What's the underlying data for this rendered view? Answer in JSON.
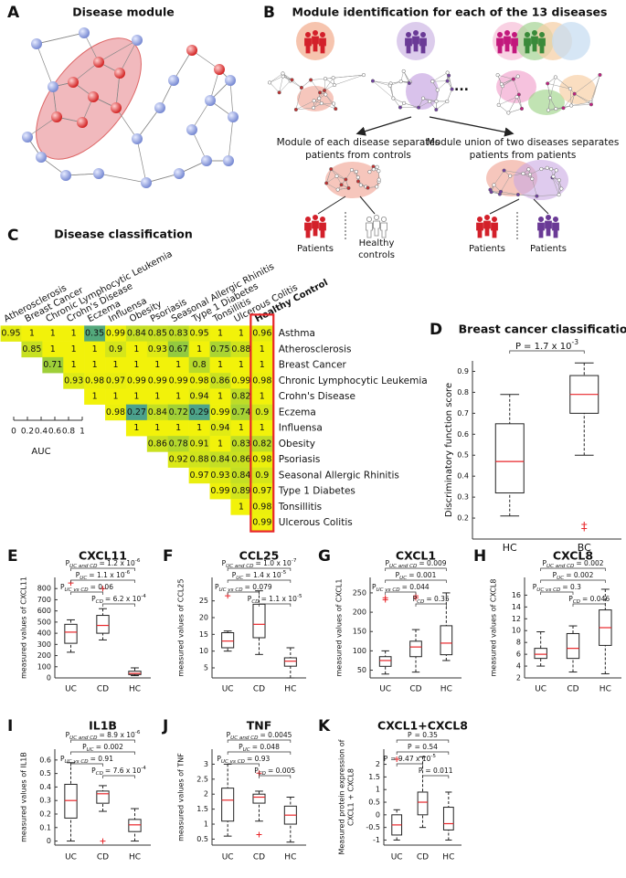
{
  "panels": {
    "A": {
      "letter": "A",
      "title": "Disease module"
    },
    "B": {
      "letter": "B",
      "title": "Module identification for each of the 13 diseases",
      "ellipsis": "...",
      "left_caption": [
        "Module of each disease separates",
        "patients from controls"
      ],
      "right_caption": [
        "Module union of two diseases separates",
        "patients from patients"
      ],
      "left_patients": "Patients",
      "left_controls": [
        "Healthy",
        "controls"
      ],
      "right_groups": [
        "Patients",
        "Patients"
      ]
    }
  },
  "chart_data": [
    {
      "type": "heatmap",
      "panel": "C",
      "title": "Disease classification",
      "columns": [
        "Atherosclerosis",
        "Breast Cancer",
        "Chronic Lymphocytic Leukemia",
        "Crohn's Disease",
        "Eczema",
        "Influensa",
        "Obesity",
        "Psoriasis",
        "Seasonal Allergic Rhinitis",
        "Type 1 Diabetes",
        "Tonsillitis",
        "Ulcerous Colitis",
        "Healthy Control"
      ],
      "rows": [
        "Asthma",
        "Atherosclerosis",
        "Breast Cancer",
        "Chronic Lymphocytic Leukemia",
        "Crohn's Disease",
        "Eczema",
        "Influensa",
        "Obesity",
        "Psoriasis",
        "Seasonal Allergic Rhinitis",
        "Type 1 Diabetes",
        "Tonsillitis",
        "Ulcerous Colitis"
      ],
      "values": [
        [
          0.95,
          1,
          1,
          1,
          0.35,
          0.99,
          0.84,
          0.85,
          0.83,
          0.95,
          1,
          1,
          0.96
        ],
        [
          0.85,
          1,
          1,
          1,
          0.9,
          1,
          0.93,
          0.67,
          1,
          0.75,
          0.88,
          1
        ],
        [
          0.71,
          1,
          1,
          1,
          1,
          1,
          1,
          0.8,
          1,
          1,
          1
        ],
        [
          0.93,
          0.98,
          0.97,
          0.99,
          0.99,
          0.99,
          0.98,
          0.86,
          0.99,
          0.98
        ],
        [
          1,
          1,
          1,
          1,
          1,
          0.94,
          1,
          0.82,
          1
        ],
        [
          0.98,
          0.27,
          0.84,
          0.72,
          0.29,
          0.99,
          0.74,
          0.9
        ],
        [
          1,
          1,
          1,
          1,
          0.94,
          1,
          1
        ],
        [
          0.86,
          0.78,
          0.91,
          1,
          0.83,
          0.82
        ],
        [
          0.92,
          0.88,
          0.84,
          0.86,
          0.98
        ],
        [
          0.97,
          0.93,
          0.84,
          0.9
        ],
        [
          0.99,
          0.89,
          0.97
        ],
        [
          1,
          0.98
        ],
        [
          0.99
        ]
      ],
      "clim": [
        0,
        1
      ],
      "colors": [
        "#2f88c9",
        "#62b65a",
        "#f2f20a"
      ],
      "colorbar_label": "AUC",
      "colorbar_ticks": [
        0,
        0.2,
        0.4,
        0.6,
        0.8,
        1
      ]
    },
    {
      "type": "box",
      "panel": "D",
      "title": "Breast cancer classification",
      "ylabel": "Discriminatory function score",
      "categories": [
        "HC",
        "BC"
      ],
      "ylim": [
        0.1,
        0.95
      ],
      "yticks": [
        0.2,
        0.3,
        0.4,
        0.5,
        0.6,
        0.7,
        0.8,
        0.9
      ],
      "boxes": [
        {
          "min": 0.21,
          "q1": 0.32,
          "median": 0.47,
          "q3": 0.65,
          "max": 0.79
        },
        {
          "min": 0.5,
          "q1": 0.7,
          "median": 0.79,
          "q3": 0.88,
          "max": 0.94,
          "outliers": [
            0.17,
            0.15
          ]
        }
      ],
      "annotations": [
        {
          "p": "P",
          "text": "= 1.7 x 10",
          "exp": "-3"
        }
      ],
      "median_color": "#e8262a"
    },
    {
      "type": "box",
      "panel": "E",
      "title": "CXCL11",
      "ylabel": "measured values of CXCL11",
      "categories": [
        "UC",
        "CD",
        "HC"
      ],
      "ylim": [
        0,
        900
      ],
      "yticks": [
        0,
        100,
        200,
        300,
        400,
        500,
        600,
        700,
        800
      ],
      "boxes": [
        {
          "min": 230,
          "q1": 310,
          "median": 410,
          "q3": 480,
          "max": 520,
          "outliers": [
            850
          ]
        },
        {
          "min": 340,
          "q1": 400,
          "median": 470,
          "q3": 560,
          "max": 620,
          "outliers": [
            800
          ]
        },
        {
          "min": 20,
          "q1": 30,
          "median": 40,
          "q3": 60,
          "max": 90
        }
      ],
      "annotations": [
        {
          "p": "P",
          "sub": "UC and CD",
          "text": "= 1.2 x 10",
          "exp": "-6"
        },
        {
          "p": "P",
          "sub": "UC",
          "text": "= 1.1 x 10",
          "exp": "-6"
        },
        {
          "p": "P",
          "sub": "UC vs CD",
          "text": "= 0.06"
        },
        {
          "p": "P",
          "sub": "CD",
          "text": "= 6.2 x 10",
          "exp": "-4"
        }
      ],
      "median_color": "#e8262a"
    },
    {
      "type": "box",
      "panel": "F",
      "title": "CCL25",
      "ylabel": "measured values of CCL25",
      "categories": [
        "UC",
        "CD",
        "HC"
      ],
      "ylim": [
        2,
        32
      ],
      "yticks": [
        5,
        10,
        15,
        20,
        25
      ],
      "boxes": [
        {
          "min": 10,
          "q1": 11,
          "median": 13,
          "q3": 15.5,
          "max": 16,
          "outliers": [
            26.5
          ]
        },
        {
          "min": 9,
          "q1": 14,
          "median": 18,
          "q3": 24,
          "max": 28
        },
        {
          "min": 2,
          "q1": 5.5,
          "median": 7,
          "q3": 8,
          "max": 11
        }
      ],
      "annotations": [
        {
          "p": "P",
          "sub": "UC and CD",
          "text": "= 1.0 x 10",
          "exp": "-7"
        },
        {
          "p": "P",
          "sub": "UC",
          "text": "= 1.4 x 10",
          "exp": "-5"
        },
        {
          "p": "P",
          "sub": "UC vs CD",
          "text": "= 0.079"
        },
        {
          "p": "P",
          "sub": "CD",
          "text": "= 1.1 x 10",
          "exp": "-5"
        }
      ],
      "median_color": "#e8262a"
    },
    {
      "type": "box",
      "panel": "G",
      "title": "CXCL1",
      "ylabel": "measured values of CXCL1",
      "categories": [
        "UC",
        "CD",
        "HC"
      ],
      "ylim": [
        30,
        290
      ],
      "yticks": [
        50,
        100,
        150,
        200,
        250
      ],
      "boxes": [
        {
          "min": 40,
          "q1": 60,
          "median": 75,
          "q3": 85,
          "max": 100,
          "outliers": [
            237,
            232
          ]
        },
        {
          "min": 45,
          "q1": 85,
          "median": 110,
          "q3": 125,
          "max": 155,
          "outliers": [
            242,
            237
          ]
        },
        {
          "min": 75,
          "q1": 90,
          "median": 120,
          "q3": 165,
          "max": 250
        }
      ],
      "annotations": [
        {
          "p": "P",
          "sub": "UC and CD",
          "text": "= 0.009"
        },
        {
          "p": "P",
          "sub": "UC",
          "text": "= 0.001"
        },
        {
          "p": "P",
          "sub": "UC vs CD",
          "text": "= 0.044"
        },
        {
          "p": "P",
          "sub": "CD",
          "text": "= 0.35"
        }
      ],
      "median_color": "#e8262a"
    },
    {
      "type": "box",
      "panel": "H",
      "title": "CXCL8",
      "ylabel": "measured values of CXCL8",
      "categories": [
        "UC",
        "CD",
        "HC"
      ],
      "ylim": [
        2,
        19
      ],
      "yticks": [
        2,
        4,
        6,
        8,
        10,
        12,
        14,
        16
      ],
      "boxes": [
        {
          "min": 4,
          "q1": 5.3,
          "median": 6,
          "q3": 7,
          "max": 9.8
        },
        {
          "min": 3,
          "q1": 5.3,
          "median": 7,
          "q3": 9.5,
          "max": 10.8
        },
        {
          "min": 2.7,
          "q1": 7.5,
          "median": 10.5,
          "q3": 13.5,
          "max": 17
        }
      ],
      "annotations": [
        {
          "p": "P",
          "sub": "UC and CD",
          "text": "= 0.002"
        },
        {
          "p": "P",
          "sub": "UC",
          "text": "= 0.002"
        },
        {
          "p": "P",
          "sub": "UC vs CD",
          "text": "= 0.3"
        },
        {
          "p": "P",
          "sub": "CD",
          "text": "= 0.046"
        }
      ],
      "median_color": "#e8262a"
    },
    {
      "type": "box",
      "panel": "I",
      "title": "IL1B",
      "ylabel": "measured values of IL1B",
      "categories": [
        "UC",
        "CD",
        "HC"
      ],
      "ylim": [
        -0.03,
        0.68
      ],
      "yticks": [
        0,
        0.1,
        0.2,
        0.3,
        0.4,
        0.5,
        0.6
      ],
      "boxes": [
        {
          "min": 0,
          "q1": 0.17,
          "median": 0.3,
          "q3": 0.42,
          "max": 0.58
        },
        {
          "min": 0.22,
          "q1": 0.28,
          "median": 0.35,
          "q3": 0.37,
          "max": 0.41,
          "outliers": [
            0
          ]
        },
        {
          "min": 0,
          "q1": 0.07,
          "median": 0.12,
          "q3": 0.16,
          "max": 0.24
        }
      ],
      "annotations": [
        {
          "p": "P",
          "sub": "UC and CD",
          "text": "= 8.9 x 10",
          "exp": "-6"
        },
        {
          "p": "P",
          "sub": "UC",
          "text": "= 0.002"
        },
        {
          "p": "P",
          "sub": "UC vs CD",
          "text": "= 0.91"
        },
        {
          "p": "P",
          "sub": "CD",
          "text": "= 7.6 x 10",
          "exp": "-4"
        }
      ],
      "median_color": "#e8262a"
    },
    {
      "type": "box",
      "panel": "J",
      "title": "TNF",
      "ylabel": "measured values of TNF",
      "categories": [
        "UC",
        "CD",
        "HC"
      ],
      "ylim": [
        0.3,
        3.5
      ],
      "yticks": [
        0.5,
        1,
        1.5,
        2,
        2.5,
        3
      ],
      "boxes": [
        {
          "min": 0.6,
          "q1": 1.1,
          "median": 1.8,
          "q3": 2.2,
          "max": 3
        },
        {
          "min": 1.1,
          "q1": 1.7,
          "median": 1.9,
          "q3": 2,
          "max": 2.1,
          "outliers": [
            2.7,
            0.65
          ]
        },
        {
          "min": 0.4,
          "q1": 1,
          "median": 1.3,
          "q3": 1.6,
          "max": 1.9
        }
      ],
      "annotations": [
        {
          "p": "P",
          "sub": "UC and CD",
          "text": "= 0.0045"
        },
        {
          "p": "P",
          "sub": "UC",
          "text": "= 0.048"
        },
        {
          "p": "P",
          "sub": "UC vs CD",
          "text": "= 0.93"
        },
        {
          "p": "P",
          "sub": "CD",
          "text": "= 0.005"
        }
      ],
      "median_color": "#e8262a"
    },
    {
      "type": "box",
      "panel": "K",
      "title": "CXCL1+CXCL8",
      "ylabel": [
        "Measured protein expression of",
        "CXCL1 + CXCL8"
      ],
      "categories": [
        "UC",
        "CD",
        "HC"
      ],
      "ylim": [
        -1.2,
        2.6
      ],
      "yticks": [
        -1,
        -0.5,
        0,
        0.5,
        1,
        1.5,
        2
      ],
      "boxes": [
        {
          "min": -1,
          "q1": -0.8,
          "median": -0.4,
          "q3": 0,
          "max": 0.2,
          "outliers": [
            2.2
          ]
        },
        {
          "min": -0.5,
          "q1": 0,
          "median": 0.5,
          "q3": 0.9,
          "max": 2.3
        },
        {
          "min": -1,
          "q1": -0.6,
          "median": -0.35,
          "q3": 0.3,
          "max": 0.9
        }
      ],
      "annotations": [
        {
          "p": "P",
          "text": "= 0.35"
        },
        {
          "p": "P",
          "text": "= 0.54"
        },
        {
          "p": "P",
          "text": "= 9.47 x 10",
          "exp": "-5"
        },
        {
          "p": "P",
          "text": "= 0.011"
        }
      ],
      "median_color": "#e8262a"
    }
  ]
}
